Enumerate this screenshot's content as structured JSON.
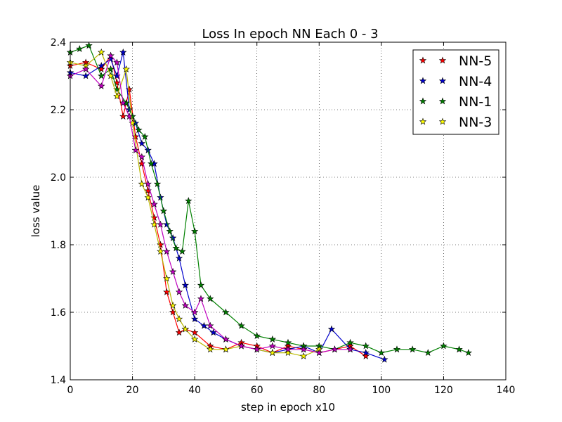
{
  "chart_data": {
    "type": "line",
    "title": "Loss In epoch NN Each 0 - 3",
    "xlabel": "step in epoch x10",
    "ylabel": "loss value",
    "xlim": [
      0,
      140
    ],
    "ylim": [
      1.4,
      2.4
    ],
    "xticks": [
      0,
      20,
      40,
      60,
      80,
      100,
      120,
      140
    ],
    "yticks": [
      1.4,
      1.6,
      1.8,
      2.0,
      2.2,
      2.4
    ],
    "x_tick_labels": [
      "0",
      "20",
      "40",
      "60",
      "80",
      "100",
      "120",
      "140"
    ],
    "y_tick_labels": [
      "1.4",
      "1.6",
      "1.8",
      "2.0",
      "2.2",
      "2.4"
    ],
    "grid": true,
    "legend_position": "top-right",
    "marker": "star",
    "series": [
      {
        "name": "NN-5",
        "color": "#ff0000",
        "x": [
          0,
          5,
          10,
          13,
          15,
          17,
          19,
          21,
          23,
          25,
          27,
          29,
          31,
          33,
          35,
          37,
          40,
          45,
          50,
          55,
          60,
          65,
          70,
          75,
          80,
          85,
          90,
          95
        ],
        "y": [
          2.33,
          2.34,
          2.32,
          2.36,
          2.28,
          2.18,
          2.26,
          2.12,
          2.04,
          1.96,
          1.88,
          1.8,
          1.66,
          1.6,
          1.54,
          1.55,
          1.54,
          1.5,
          1.49,
          1.51,
          1.5,
          1.48,
          1.5,
          1.49,
          1.48,
          1.49,
          1.5,
          1.47
        ]
      },
      {
        "name": "NN-4",
        "color": "#0000cc",
        "x": [
          0,
          5,
          10,
          13,
          15,
          17,
          19,
          21,
          23,
          25,
          27,
          29,
          31,
          33,
          35,
          37,
          40,
          43,
          46,
          50,
          55,
          60,
          65,
          70,
          75,
          80,
          84,
          90,
          95,
          101
        ],
        "y": [
          2.31,
          2.3,
          2.33,
          2.35,
          2.3,
          2.37,
          2.2,
          2.16,
          2.1,
          2.08,
          2.04,
          1.94,
          1.86,
          1.82,
          1.76,
          1.68,
          1.58,
          1.56,
          1.54,
          1.52,
          1.5,
          1.49,
          1.48,
          1.49,
          1.5,
          1.48,
          1.55,
          1.49,
          1.48,
          1.46
        ]
      },
      {
        "name": "NN-1",
        "color": "#008000",
        "x": [
          0,
          3,
          6,
          10,
          13,
          15,
          18,
          20,
          22,
          24,
          26,
          28,
          30,
          32,
          34,
          36,
          38,
          40,
          42,
          45,
          50,
          55,
          60,
          65,
          70,
          75,
          80,
          85,
          90,
          95,
          100,
          105,
          110,
          115,
          120,
          125,
          128
        ],
        "y": [
          2.37,
          2.38,
          2.39,
          2.3,
          2.32,
          2.26,
          2.22,
          2.18,
          2.14,
          2.12,
          2.04,
          1.98,
          1.9,
          1.84,
          1.79,
          1.78,
          1.93,
          1.84,
          1.68,
          1.64,
          1.6,
          1.56,
          1.53,
          1.52,
          1.51,
          1.5,
          1.5,
          1.49,
          1.51,
          1.5,
          1.48,
          1.49,
          1.49,
          1.48,
          1.5,
          1.49,
          1.48
        ]
      },
      {
        "name": "NN-3",
        "color": "#ffff00",
        "x": [
          0,
          5,
          10,
          13,
          15,
          18,
          20,
          23,
          25,
          27,
          29,
          31,
          33,
          35,
          37,
          40,
          45,
          50,
          55,
          60,
          65,
          70,
          75,
          80
        ],
        "y": [
          2.34,
          2.33,
          2.37,
          2.3,
          2.24,
          2.32,
          2.16,
          1.98,
          1.94,
          1.86,
          1.78,
          1.7,
          1.62,
          1.58,
          1.55,
          1.52,
          1.49,
          1.49,
          1.5,
          1.49,
          1.48,
          1.48,
          1.47,
          1.49
        ]
      },
      {
        "name": "",
        "color": "#bf00bf",
        "x": [
          0,
          5,
          10,
          13,
          15,
          17,
          19,
          21,
          23,
          25,
          27,
          29,
          31,
          33,
          35,
          37,
          40,
          42,
          45,
          50,
          55,
          60,
          65,
          70,
          75,
          80,
          85,
          90
        ],
        "y": [
          2.3,
          2.32,
          2.27,
          2.36,
          2.34,
          2.22,
          2.18,
          2.08,
          2.06,
          1.98,
          1.92,
          1.86,
          1.78,
          1.72,
          1.66,
          1.62,
          1.6,
          1.64,
          1.56,
          1.52,
          1.5,
          1.49,
          1.5,
          1.49,
          1.49,
          1.48,
          1.49,
          1.49
        ]
      }
    ],
    "legend_entries": [
      "NN-5",
      "NN-4",
      "NN-1",
      "NN-3"
    ]
  }
}
